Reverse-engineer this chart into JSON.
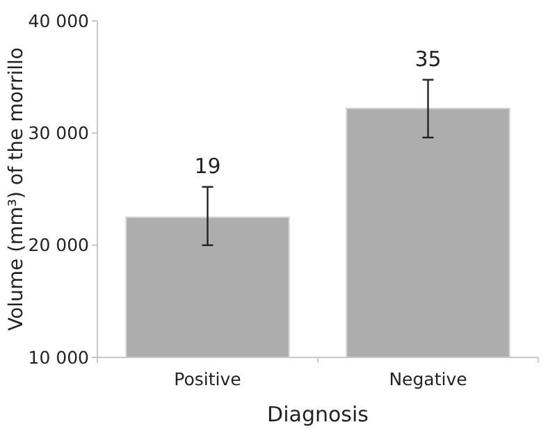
{
  "chart_data": {
    "type": "bar",
    "xlabel": "Diagnosis",
    "ylabel": "Volume (mm³) of the morrillo",
    "categories": [
      "Positive",
      "Negative"
    ],
    "values": [
      22500,
      32200
    ],
    "errors": [
      [
        20000,
        25200
      ],
      [
        29600,
        34750
      ]
    ],
    "annotations": [
      {
        "text": "19",
        "x": "Positive",
        "y": 25200
      },
      {
        "text": "35",
        "x": "Negative",
        "y": 34750
      }
    ],
    "color": "#adadad",
    "ylim": [
      10000,
      40000
    ],
    "yticks": [
      {
        "value": 10000,
        "label": "10 000"
      },
      {
        "value": 20000,
        "label": "20 000"
      },
      {
        "value": 30000,
        "label": "30 000"
      },
      {
        "value": 40000,
        "label": "40 000"
      }
    ],
    "grid": false
  }
}
